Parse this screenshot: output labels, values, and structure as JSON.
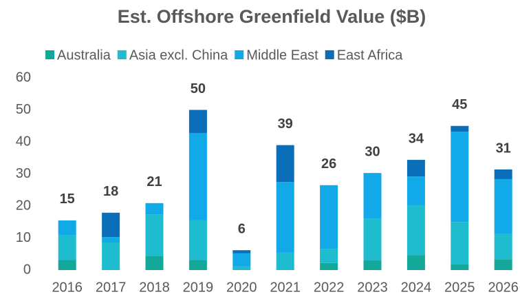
{
  "chart_data": {
    "type": "stacked_bar",
    "title": "Est. Offshore Greenfield Value ($B)",
    "categories": [
      "2016",
      "2017",
      "2018",
      "2019",
      "2020",
      "2021",
      "2022",
      "2023",
      "2024",
      "2025",
      "2026"
    ],
    "series": [
      {
        "name": "Australia",
        "color": "#14a89a",
        "values": [
          3.2,
          0,
          4.3,
          3.2,
          0,
          0,
          2.2,
          3,
          4.7,
          1.9,
          3.4
        ]
      },
      {
        "name": "Asia excl. China",
        "color": "#1fbcd0",
        "values": [
          7.6,
          8.6,
          13.1,
          12.3,
          1.1,
          5.4,
          4.3,
          13.1,
          15.5,
          13.1,
          8
        ]
      },
      {
        "name": "Middle East",
        "color": "#12a9e8",
        "values": [
          4.7,
          1.7,
          3.5,
          27.3,
          4.1,
          22.1,
          20,
          14.2,
          9,
          28.2,
          17
        ]
      },
      {
        "name": "East Africa",
        "color": "#0a6fb8",
        "values": [
          0,
          7.6,
          0,
          7.2,
          1,
          11.5,
          0,
          0,
          5.2,
          1.8,
          3
        ]
      }
    ],
    "totals": [
      15,
      18,
      21,
      50,
      6,
      39,
      26,
      30,
      34,
      45,
      31
    ],
    "ylim": [
      0,
      60
    ],
    "yticks": [
      0,
      10,
      20,
      30,
      40,
      50,
      60
    ],
    "grid": false,
    "legend": "top"
  }
}
